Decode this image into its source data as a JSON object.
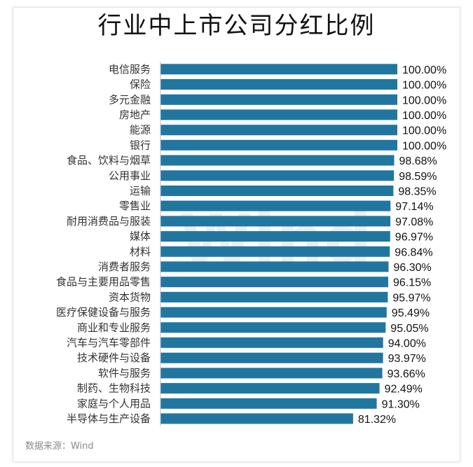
{
  "chart_data": {
    "type": "bar",
    "orientation": "horizontal",
    "title": "行业中上市公司分红比例",
    "categories": [
      "电信服务",
      "保险",
      "多元金融",
      "房地产",
      "能源",
      "银行",
      "食品、饮料与烟草",
      "公用事业",
      "运输",
      "零售业",
      "耐用消费品与服装",
      "媒体",
      "材料",
      "消费者服务",
      "食品与主要用品零售",
      "资本货物",
      "医疗保健设备与服务",
      "商业和专业服务",
      "汽车与汽车零部件",
      "技术硬件与设备",
      "软件与服务",
      "制药、生物科技",
      "家庭与个人用品",
      "半导体与生产设备"
    ],
    "values": [
      100.0,
      100.0,
      100.0,
      100.0,
      100.0,
      100.0,
      98.68,
      98.59,
      98.35,
      97.14,
      97.08,
      96.97,
      96.84,
      96.3,
      96.15,
      95.97,
      95.49,
      95.05,
      94.0,
      93.97,
      93.66,
      92.49,
      91.3,
      81.32
    ],
    "value_labels": [
      "100.00%",
      "100.00%",
      "100.00%",
      "100.00%",
      "100.00%",
      "100.00%",
      "98.68%",
      "98.59%",
      "98.35%",
      "97.14%",
      "97.08%",
      "96.97%",
      "96.84%",
      "96.30%",
      "96.15%",
      "95.97%",
      "95.49%",
      "95.05%",
      "94.00%",
      "93.97%",
      "93.66%",
      "92.49%",
      "91.30%",
      "81.32%"
    ],
    "xlim": [
      0,
      100
    ],
    "unit": "%",
    "bar_color": "#2176a0",
    "grid": false,
    "legend": "none"
  },
  "watermark": "Wind",
  "source": "数据来源：Wind"
}
